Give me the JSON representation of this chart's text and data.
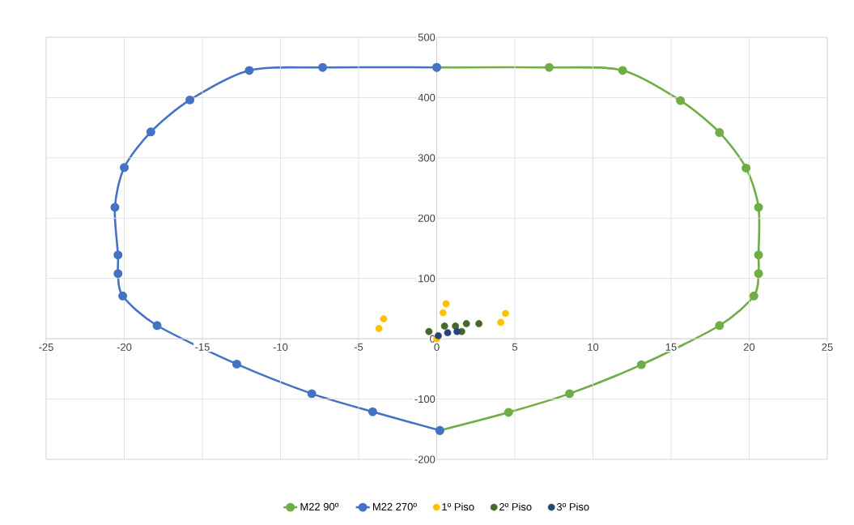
{
  "chart_data": {
    "type": "line",
    "xlim": [
      -25,
      25
    ],
    "ylim": [
      -200,
      500
    ],
    "xticks": [
      -25,
      -20,
      -15,
      -10,
      -5,
      0,
      5,
      10,
      15,
      20,
      25
    ],
    "yticks": [
      -200,
      -100,
      0,
      100,
      200,
      300,
      400,
      500
    ],
    "grid": true,
    "legend": "bottom",
    "marker": "circle",
    "series": [
      {
        "name": "M22 90º",
        "color": "#70ad47",
        "x": [
          0,
          7.2,
          11.9,
          15.6,
          18.1,
          19.8,
          20.6,
          20.6,
          20.6,
          20.3,
          18.1,
          13.1,
          8.5,
          4.6,
          0.2
        ],
        "values": [
          450,
          450,
          445,
          395,
          342,
          283,
          218,
          139,
          108,
          71,
          22,
          -43,
          -91,
          -122,
          -152
        ]
      },
      {
        "name": "M22 270º",
        "color": "#4472c4",
        "x": [
          0,
          -7.3,
          -12,
          -15.8,
          -18.3,
          -20,
          -20.6,
          -20.4,
          -20.4,
          -20.1,
          -17.9,
          -12.8,
          -8,
          -4.1,
          0.2
        ],
        "values": [
          450,
          450,
          445,
          396,
          343,
          284,
          218,
          139,
          108,
          71,
          22,
          -42,
          -91,
          -121,
          -152
        ]
      },
      {
        "name": "1º Piso",
        "type": "scatter",
        "color": "#ffc000",
        "x": [
          -3.7,
          -3.4,
          0.6,
          0.4,
          4.1,
          4.4,
          0
        ],
        "values": [
          17,
          33,
          58,
          43,
          27,
          42,
          0
        ]
      },
      {
        "name": "2º Piso",
        "type": "scatter",
        "color": "#43682b",
        "x": [
          -0.5,
          0.5,
          1.2,
          1.9,
          2.7,
          1.6
        ],
        "values": [
          12,
          21,
          21,
          25,
          25,
          12
        ]
      },
      {
        "name": "3º Piso",
        "type": "scatter",
        "color": "#264478",
        "x": [
          0.1,
          0.7,
          1.3
        ],
        "values": [
          5,
          10,
          12
        ]
      }
    ]
  }
}
